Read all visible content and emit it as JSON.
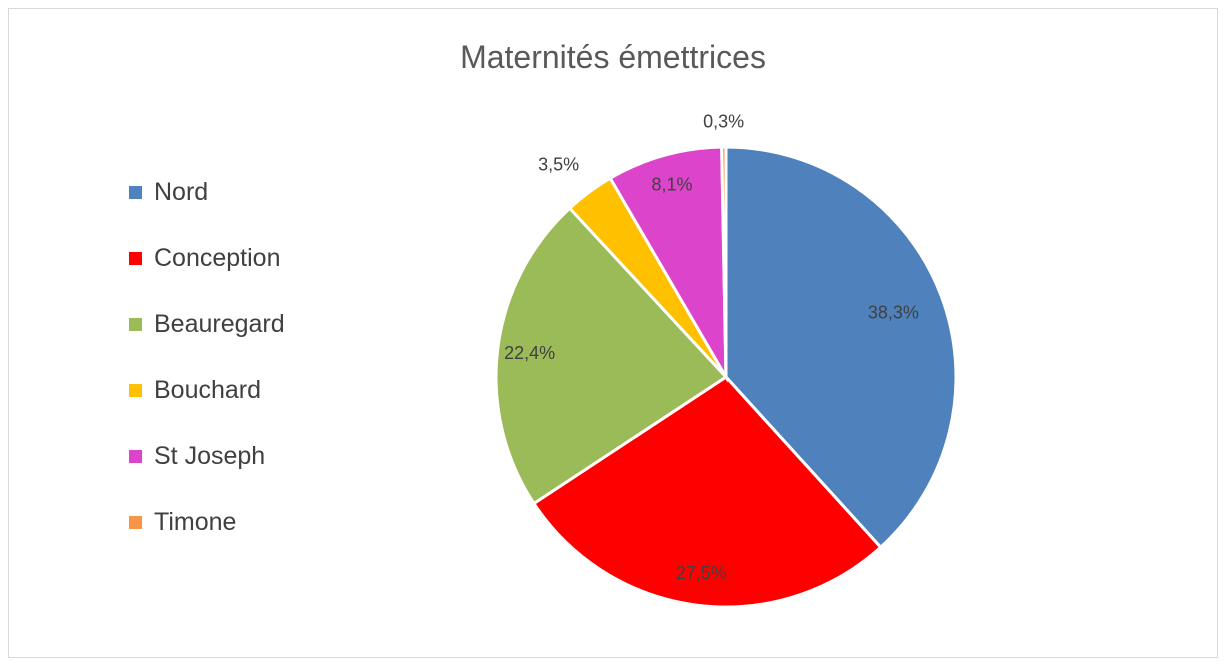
{
  "chart_data": {
    "type": "pie",
    "title": "Maternités émettrices",
    "legend_position": "left",
    "categories": [
      "Nord",
      "Conception",
      "Beauregard",
      "Bouchard",
      "St Joseph",
      "Timone"
    ],
    "values": [
      38.3,
      27.5,
      22.4,
      3.5,
      8.1,
      0.3
    ],
    "value_labels": [
      "38,3%",
      "27,5%",
      "22,4%",
      "3,5%",
      "8,1%",
      "0,3%"
    ],
    "colors": [
      "#4f81bd",
      "#ff0000",
      "#9bbb59",
      "#ffc000",
      "#dd44cc",
      "#f79646"
    ]
  }
}
